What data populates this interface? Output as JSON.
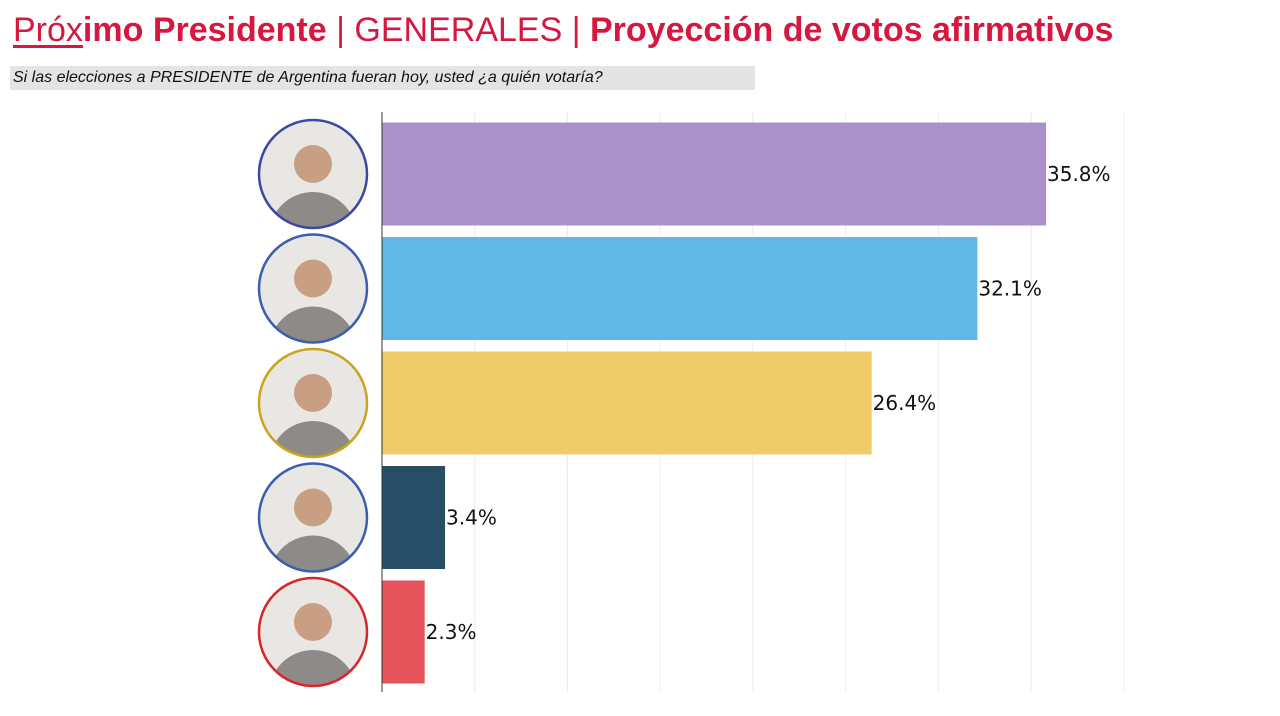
{
  "header": {
    "title_part1_underlined": "Próx",
    "title_part1_rest": "imo Presidente",
    "sep1": " | ",
    "title_part2": "GENERALES",
    "sep2": " | ",
    "title_part3": "Proyección de votos afirmativos",
    "subtitle": "Si las elecciones a PRESIDENTE de Argentina fueran hoy, usted ¿a quién votaría?"
  },
  "colors": {
    "title": "#d6173f",
    "candidate_1": "#ab91c9",
    "candidate_2": "#62b8e4",
    "candidate_3": "#efcb6a",
    "candidate_4": "#284d66",
    "candidate_5": "#e4545a"
  },
  "chart_data": {
    "type": "bar",
    "orientation": "horizontal",
    "title": "",
    "xlabel": "",
    "ylabel": "",
    "xlim": [
      0,
      40
    ],
    "grid": true,
    "legend": "none",
    "categories": [
      "candidate-1-photo",
      "candidate-2-photo",
      "candidate-3-photo",
      "candidate-4-photo",
      "candidate-5-photo"
    ],
    "values": [
      35.8,
      32.1,
      26.4,
      3.4,
      2.3
    ],
    "labels": [
      "35.8%",
      "32.1%",
      "26.4%",
      "3.4%",
      "2.3%"
    ],
    "bar_colors": [
      "#ab91c9",
      "#62b8e4",
      "#efcb6a",
      "#284d66",
      "#e4545a"
    ],
    "avatar_ring_colors": [
      "#3b4aa0",
      "#3b5fb0",
      "#c9a420",
      "#3b5fb0",
      "#d8262e"
    ]
  }
}
